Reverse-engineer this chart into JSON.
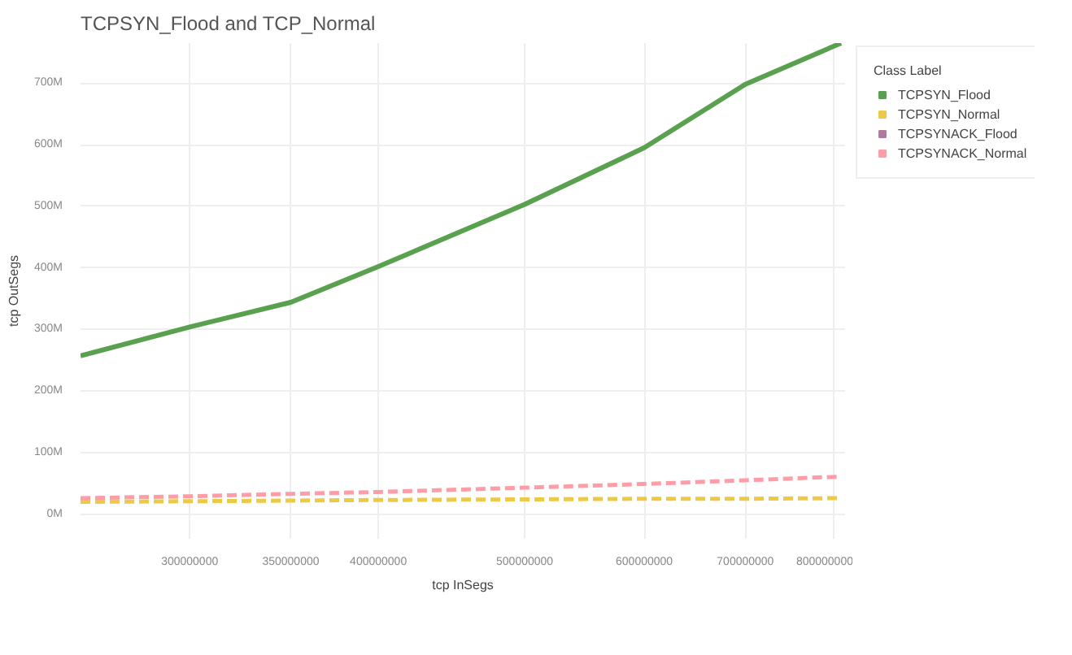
{
  "chart_data": {
    "type": "line",
    "title": "TCPSYN_Flood and TCP_Normal",
    "xlabel": "tcp InSegs",
    "ylabel": "tcp OutSegs",
    "legend_title": "Class Label",
    "log": "x",
    "grid": true,
    "legend": "right",
    "marker": "none",
    "x": [
      254000000,
      300000000,
      350000000,
      400000000,
      500000000,
      600000000,
      700000000,
      810000000
    ],
    "xlim": [
      254000000,
      815000000
    ],
    "xticks": [
      300000000,
      350000000,
      400000000,
      500000000,
      600000000,
      700000000,
      800000000
    ],
    "ylim": [
      -40000000,
      765000000
    ],
    "yticks": [
      {
        "value": 0,
        "label": "0M"
      },
      {
        "value": 100000000,
        "label": "100M"
      },
      {
        "value": 200000000,
        "label": "200M"
      },
      {
        "value": 300000000,
        "label": "300M"
      },
      {
        "value": 400000000,
        "label": "400M"
      },
      {
        "value": 500000000,
        "label": "500M"
      },
      {
        "value": 600000000,
        "label": "600M"
      },
      {
        "value": 700000000,
        "label": "700M"
      }
    ],
    "series": [
      {
        "name": "TCPSYN_Flood",
        "color": "#59a14f",
        "line_style": "solid",
        "values": [
          257000000,
          304000000,
          344000000,
          402000000,
          503000000,
          595000000,
          698000000,
          765000000
        ]
      },
      {
        "name": "TCPSYN_Normal",
        "color": "#edc948",
        "line_style": "dashed",
        "values": [
          20000000,
          21000000,
          22000000,
          23000000,
          24000000,
          25000000,
          25000000,
          26000000
        ]
      },
      {
        "name": "TCPSYNACK_Flood",
        "color": "#b07aa1",
        "line_style": "dashed",
        "values": [
          null,
          null,
          null,
          null,
          null,
          null,
          null,
          null
        ]
      },
      {
        "name": "TCPSYNACK_Normal",
        "color": "#ff9da7",
        "line_style": "dashed",
        "values": [
          26000000,
          29000000,
          33000000,
          36000000,
          43000000,
          49000000,
          55000000,
          61000000
        ]
      }
    ]
  }
}
